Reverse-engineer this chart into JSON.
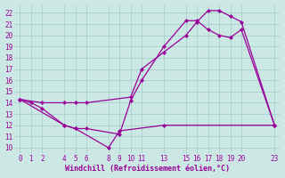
{
  "xlabel": "Windchill (Refroidissement éolien,°C)",
  "bg_color": "#cce8e4",
  "grid_color": "#aad4d0",
  "line_color": "#990099",
  "xlim": [
    -0.5,
    23.5
  ],
  "ylim": [
    9.5,
    22.7
  ],
  "xticks": [
    0,
    1,
    2,
    4,
    5,
    6,
    8,
    9,
    10,
    11,
    13,
    15,
    16,
    17,
    18,
    19,
    20,
    23
  ],
  "yticks": [
    10,
    11,
    12,
    13,
    14,
    15,
    16,
    17,
    18,
    19,
    20,
    21,
    22
  ],
  "line1_x": [
    0,
    1,
    2,
    4,
    5,
    6,
    9,
    10,
    11,
    13,
    15,
    16,
    17,
    18,
    19,
    20,
    23
  ],
  "line1_y": [
    14.3,
    14.0,
    13.5,
    12.0,
    11.7,
    11.7,
    11.2,
    14.2,
    16.0,
    19.0,
    21.3,
    21.3,
    20.5,
    20.0,
    19.8,
    20.5,
    12.0
  ],
  "line2_x": [
    0,
    2,
    4,
    5,
    6,
    10,
    11,
    13,
    15,
    16,
    17,
    18,
    19,
    20,
    23
  ],
  "line2_y": [
    14.3,
    14.0,
    14.0,
    14.0,
    14.0,
    14.5,
    17.0,
    18.5,
    20.0,
    21.2,
    22.2,
    22.2,
    21.7,
    21.2,
    12.0
  ],
  "line3_x": [
    0,
    4,
    5,
    8,
    9,
    13,
    23
  ],
  "line3_y": [
    14.3,
    12.0,
    11.7,
    10.0,
    11.5,
    12.0,
    12.0
  ],
  "tick_fontsize": 5.5,
  "xlabel_fontsize": 6.0
}
